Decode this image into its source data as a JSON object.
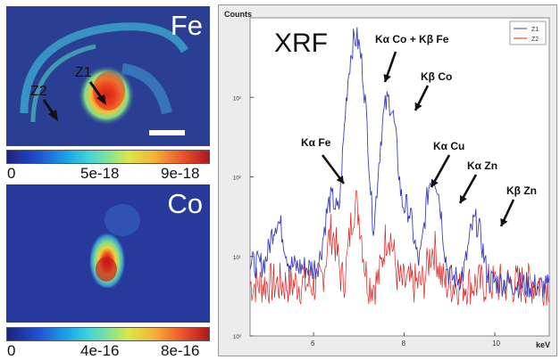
{
  "fe_map": {
    "element_label": "Fe",
    "points": [
      "Z1",
      "Z2"
    ],
    "colorbar_ticks": [
      "0",
      "5e-18",
      "9e-18"
    ]
  },
  "co_map": {
    "element_label": "Co",
    "colorbar_ticks": [
      "0",
      "4e-16",
      "8e-16"
    ]
  },
  "chart_data": {
    "type": "line",
    "title": "XRF",
    "ylabel": "Counts",
    "xlabel": "keV",
    "yscale": "log",
    "xlim": [
      4.6,
      11.2
    ],
    "ylim": [
      1,
      10000
    ],
    "x_ticks": [
      "6",
      "8",
      "10"
    ],
    "y_ticks": [
      "10⁰",
      "10¹",
      "10²",
      "10³"
    ],
    "legend_position": "top-right",
    "series": [
      {
        "name": "Z1",
        "color": "#3b3fbf",
        "peaks": [
          {
            "kev": 5.2,
            "counts": 20
          },
          {
            "kev": 6.4,
            "counts": 45
          },
          {
            "kev": 6.93,
            "counts": 5500
          },
          {
            "kev": 7.65,
            "counts": 900
          },
          {
            "kev": 8.05,
            "counts": 35
          },
          {
            "kev": 8.64,
            "counts": 100
          },
          {
            "kev": 9.57,
            "counts": 22
          }
        ]
      },
      {
        "name": "Z2",
        "color": "#e02020",
        "peaks": [
          {
            "kev": 6.4,
            "counts": 15
          },
          {
            "kev": 6.93,
            "counts": 40
          },
          {
            "kev": 7.65,
            "counts": 15
          },
          {
            "kev": 8.64,
            "counts": 8
          }
        ]
      }
    ],
    "annotations": [
      {
        "text": "Kα Co + Kβ Fe"
      },
      {
        "text": "Kβ Co"
      },
      {
        "text": "Kα Fe"
      },
      {
        "text": "Kα Cu"
      },
      {
        "text": "Kα Zn"
      },
      {
        "text": "Kβ Zn"
      }
    ]
  }
}
